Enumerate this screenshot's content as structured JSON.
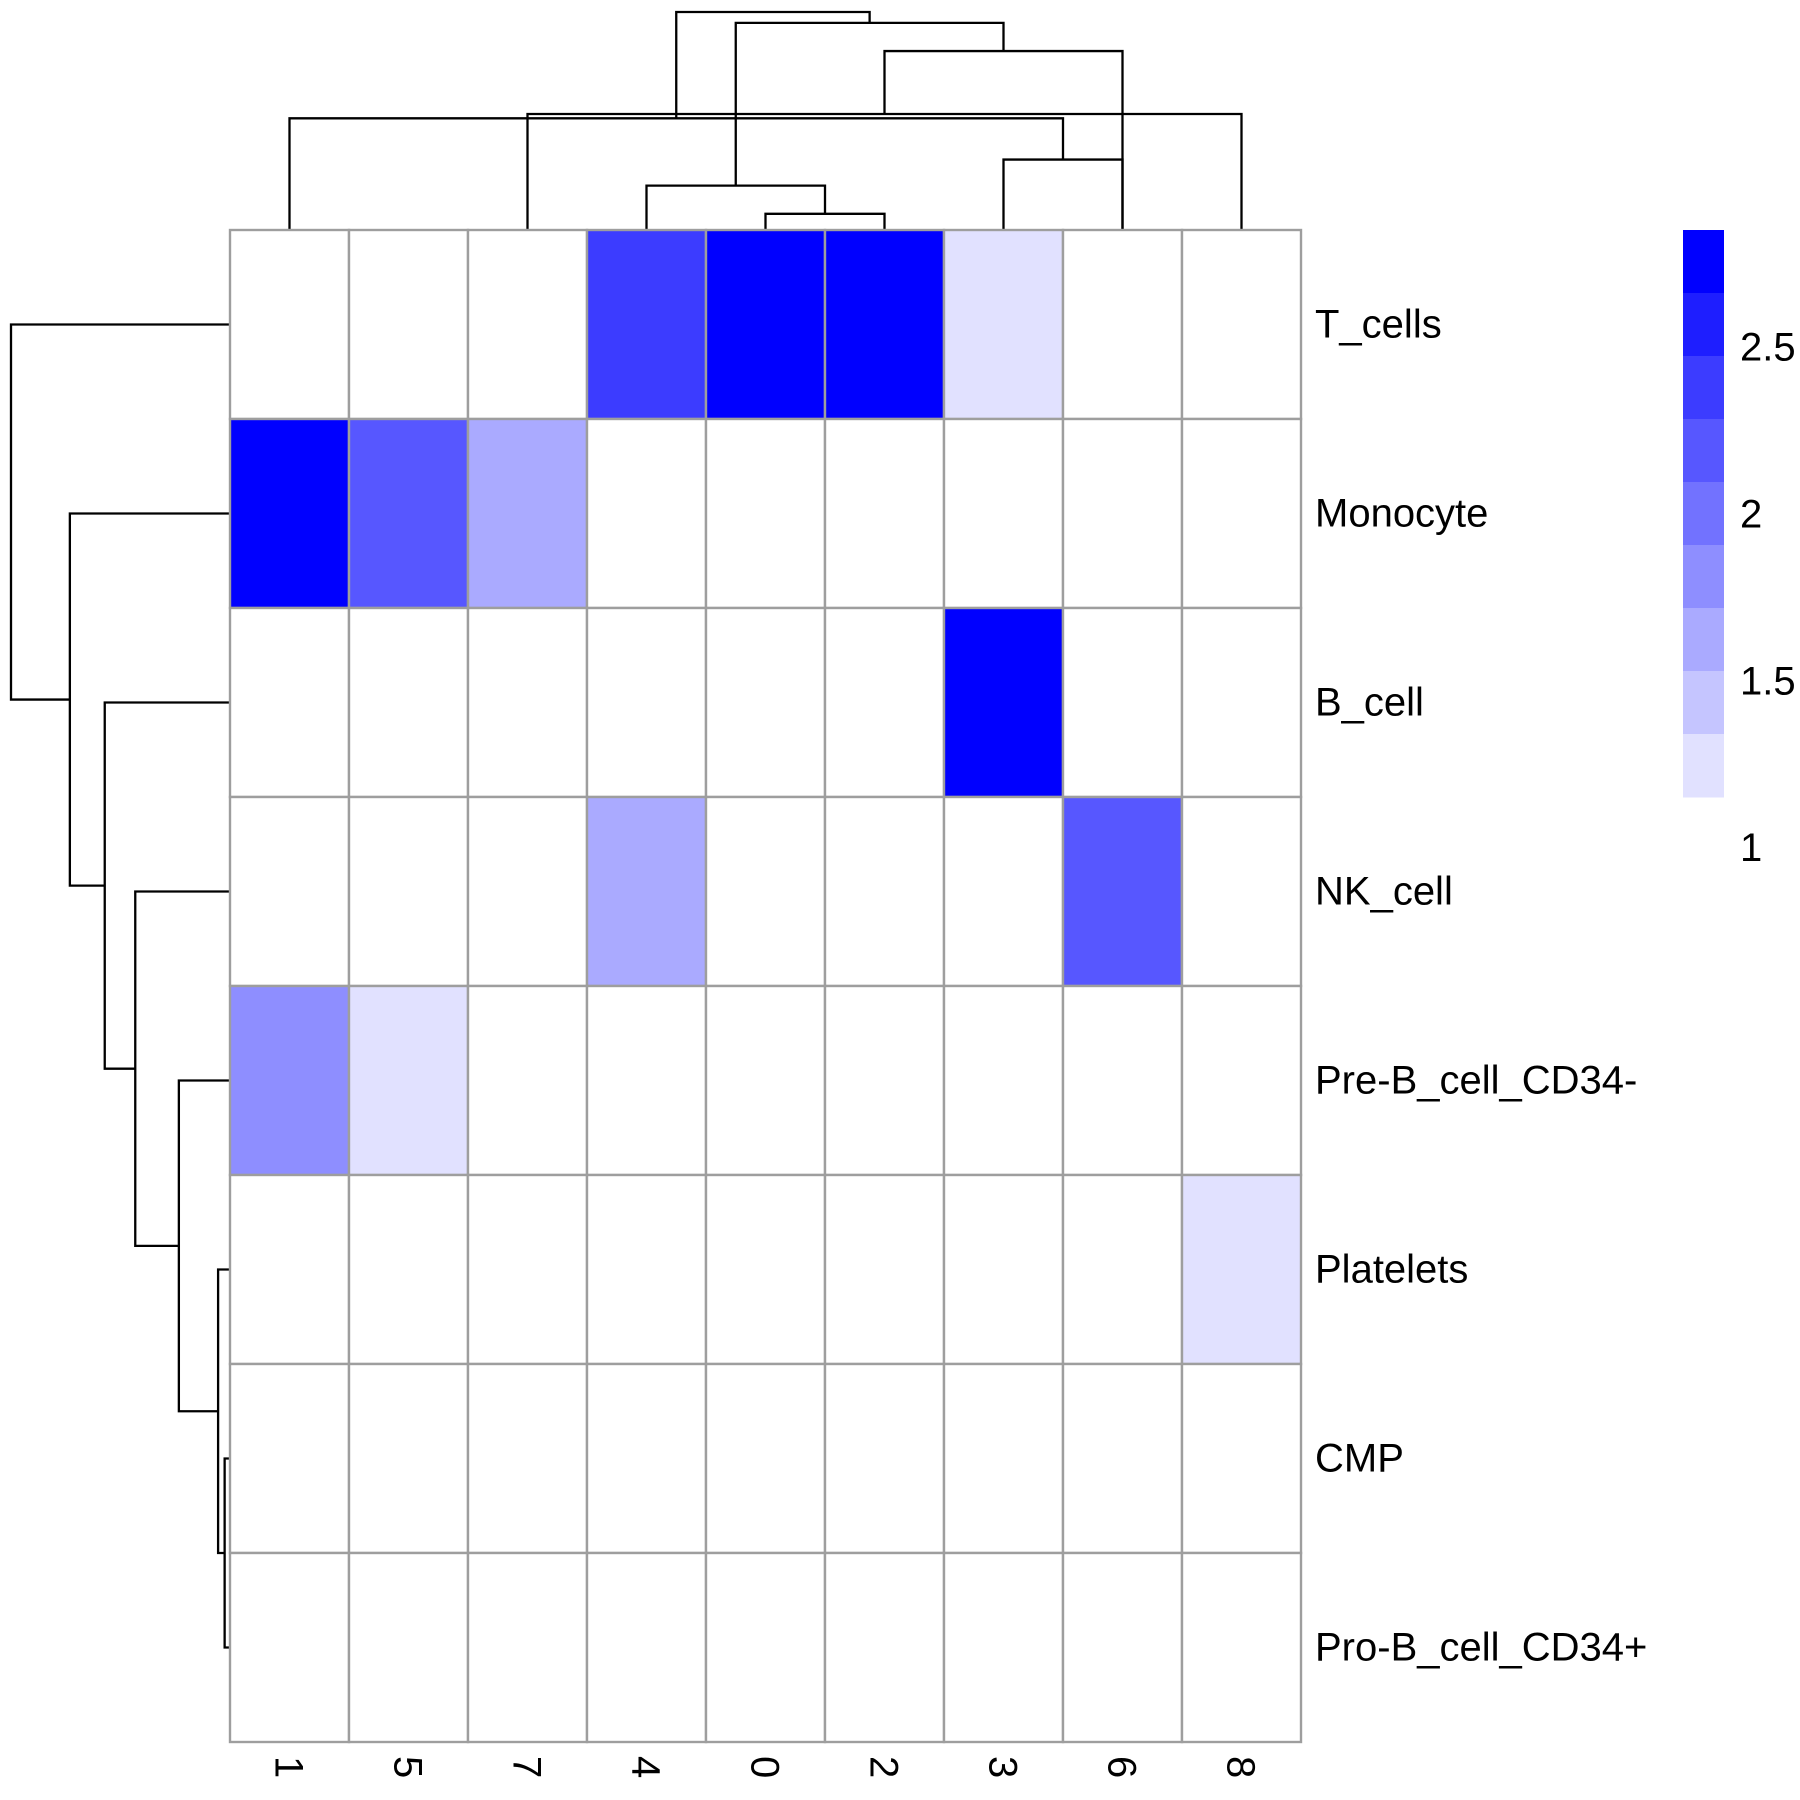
{
  "chart_data": {
    "type": "heatmap",
    "columns": [
      "1",
      "5",
      "7",
      "4",
      "0",
      "2",
      "3",
      "6",
      "8"
    ],
    "rows": [
      "T_cells",
      "Monocyte",
      "B_cell",
      "NK_cell",
      "Pre-B_cell_CD34-",
      "Platelets",
      "CMP",
      "Pro-B_cell_CD34+"
    ],
    "values": [
      [
        null,
        null,
        null,
        2.4,
        2.85,
        2.85,
        1.15,
        null,
        null
      ],
      [
        2.7,
        2.2,
        1.6,
        null,
        null,
        null,
        null,
        null,
        null
      ],
      [
        null,
        null,
        null,
        null,
        null,
        null,
        2.7,
        null,
        null
      ],
      [
        null,
        null,
        null,
        1.6,
        null,
        null,
        null,
        2.2,
        null
      ],
      [
        1.85,
        1.15,
        null,
        null,
        null,
        null,
        null,
        null,
        null
      ],
      [
        null,
        null,
        null,
        null,
        null,
        null,
        null,
        null,
        1.15
      ],
      [
        null,
        null,
        null,
        null,
        null,
        null,
        null,
        null,
        null
      ],
      [
        null,
        null,
        null,
        null,
        null,
        null,
        null,
        null,
        null
      ]
    ],
    "missing_color": "#ffffff",
    "legend": {
      "ticks": [
        2.5,
        2,
        1.5,
        1
      ],
      "tick_labels": [
        "2.5",
        "2",
        "1.5",
        "1"
      ],
      "color_bins": [
        "#0000ff",
        "#1e1eff",
        "#3c3cff",
        "#5757ff",
        "#7272ff",
        "#8e8eff",
        "#aaaaff",
        "#c5c5ff",
        "#e1e1ff"
      ],
      "bin_range": [
        1.15,
        2.85
      ],
      "position": "right"
    },
    "col_dendrogram": [
      {
        "a": "3",
        "b": "6",
        "h": 0.32
      },
      {
        "a": "0",
        "b": "2",
        "h": 0.07
      },
      {
        "a": "4",
        "b": "m2",
        "h": 0.2
      },
      {
        "a": "1",
        "b": "m1",
        "h": 0.51
      },
      {
        "a": "7",
        "b": "8",
        "h": 0.53
      },
      {
        "a": "6",
        "b": "m5",
        "h": 0.82
      },
      {
        "a": "m3",
        "b": "m6",
        "h": 0.95
      },
      {
        "a": "m4",
        "b": "m7",
        "h": 1.0
      }
    ],
    "row_dendrogram": [
      {
        "a": "CMP",
        "b": "Pro-B_cell_CD34+",
        "h": 0.02
      },
      {
        "a": "Platelets",
        "b": "m1",
        "h": 0.05
      },
      {
        "a": "Pre-B_cell_CD34-",
        "b": "m2",
        "h": 0.23
      },
      {
        "a": "NK_cell",
        "b": "m3",
        "h": 0.43
      },
      {
        "a": "B_cell",
        "b": "m4",
        "h": 0.57
      },
      {
        "a": "Monocyte",
        "b": "m5",
        "h": 0.73
      },
      {
        "a": "T_cells",
        "b": "m6",
        "h": 1.0
      }
    ]
  }
}
